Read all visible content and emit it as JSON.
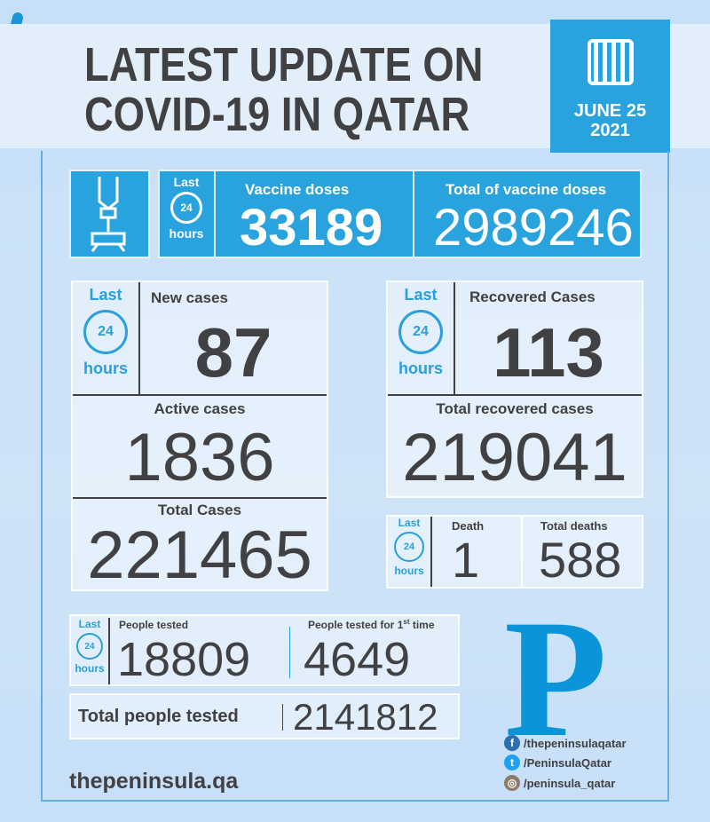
{
  "header": {
    "title_line1": "LATEST UPDATE ON",
    "title_line2": "COVID-19 IN QATAR",
    "date_line1": "JUNE 25",
    "date_line2": "2021"
  },
  "last24": {
    "last": "Last",
    "hours": "hours",
    "clock": "24"
  },
  "vaccine": {
    "doses_label": "Vaccine doses",
    "doses": "33189",
    "total_label": "Total of vaccine doses",
    "total": "2989246"
  },
  "cases": {
    "new_label": "New cases",
    "new": "87",
    "active_label": "Active cases",
    "active": "1836",
    "total_label": "Total Cases",
    "total": "221465"
  },
  "recovered": {
    "label": "Recovered Cases",
    "value": "113",
    "total_label": "Total recovered cases",
    "total": "219041"
  },
  "deaths": {
    "death_label": "Death",
    "death": "1",
    "total_label": "Total deaths",
    "total": "588"
  },
  "tests": {
    "tested_label": "People tested",
    "tested": "18809",
    "first_label": "People tested for 1",
    "first_sup": "st",
    "first_suffix": " time",
    "first": "4649",
    "total_label": "Total people tested",
    "total": "2141812"
  },
  "footer": {
    "site": "thepeninsula.qa",
    "logo": "P",
    "facebook": "/thepeninsulaqatar",
    "twitter": "/PeninsulaQatar",
    "instagram": "/peninsula_qatar"
  },
  "colors": {
    "accent": "#29a3dd",
    "text": "#414042",
    "background": "#c9e1f7"
  }
}
